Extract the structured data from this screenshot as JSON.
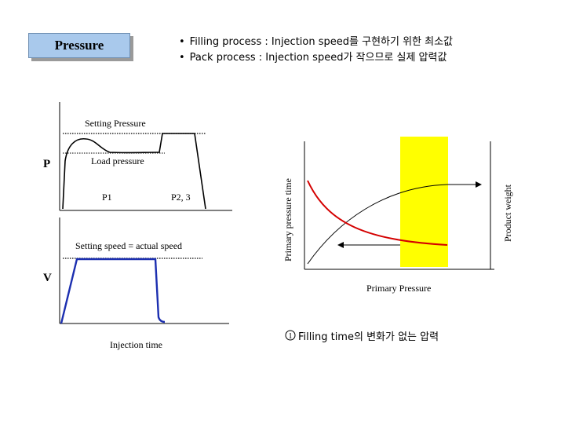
{
  "title": "Pressure",
  "bullets": [
    "Filling process : Injection speed를 구현하기 위한 최소값",
    "Pack process : Injection speed가 작으므로 실제 압력값"
  ],
  "pressure_graph": {
    "axis_label": "P",
    "setting_label": "Setting Pressure",
    "load_label": "Load pressure",
    "p1_label": "P1",
    "p23_label": "P2, 3"
  },
  "velocity_graph": {
    "axis_label": "V",
    "speed_label": "Setting speed = actual speed",
    "x_label": "Injection time"
  },
  "right_graph": {
    "y_left_label": "Primary pressure time",
    "y_right_label": "Product weight",
    "x_label": "Primary Pressure",
    "highlight_color": "#ffff00",
    "curve_color": "#d40000"
  },
  "note": {
    "marker": "①",
    "text": "Filling time의 변화가 없는 압력"
  },
  "colors": {
    "velocity_line": "#1c2fb0",
    "title_bg": "#a9c9ec"
  }
}
